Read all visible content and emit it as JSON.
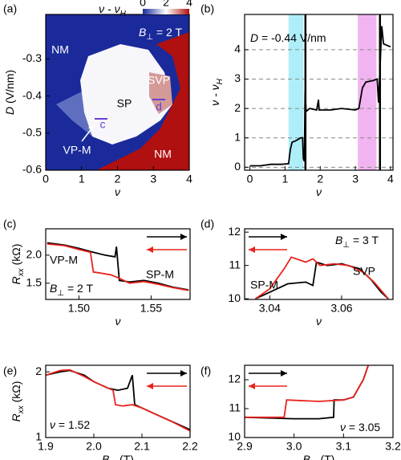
{
  "chart_data": [
    {
      "type": "heatmap",
      "label": "(a)",
      "xlim": [
        0,
        4
      ],
      "ylim": [
        -0.6,
        -0.18
      ],
      "xticks": [
        0,
        1,
        2,
        3,
        4
      ],
      "yticks": [
        -0.3,
        -0.4,
        -0.5,
        -0.6
      ],
      "xlabel": [
        {
          "text": "ν",
          "italic": true
        }
      ],
      "ylabel": [
        {
          "text": "D",
          "italic": true
        },
        {
          "text": " (V/nm)"
        }
      ],
      "colorbar": {
        "label": [
          {
            "text": "ν - ν",
            "italic": true
          },
          {
            "text": "H",
            "sub": true,
            "italic": true
          }
        ],
        "clim": [
          0,
          4
        ],
        "cticks": [
          0,
          2,
          4
        ],
        "colors": [
          "#1a2a9a",
          "#ffffff",
          "#b01010"
        ]
      },
      "annotations": [
        {
          "text": "NM",
          "color": "#ffffff"
        },
        {
          "text": [
            {
              "text": "B",
              "italic": true
            },
            {
              "text": "⊥",
              "sub": true
            },
            {
              "text": " = 2 T"
            }
          ],
          "color": "#ffffff"
        },
        {
          "text": "SVP",
          "color": "#ffffff"
        },
        {
          "text": "SP",
          "color": "#000000"
        },
        {
          "text": "d",
          "color": "#6a3fd0"
        },
        {
          "text": "c",
          "color": "#6a3fd0"
        },
        {
          "text": "VP-M",
          "color": "#ffffff"
        },
        {
          "text": "NM",
          "color": "#ffffff"
        }
      ]
    },
    {
      "type": "line",
      "label": "(b)",
      "xlim": [
        -0.15,
        4.07
      ],
      "ylim": [
        -0.1,
        5.2
      ],
      "xticks": [
        0,
        1,
        2,
        3,
        4
      ],
      "yticks": [
        0,
        1,
        2,
        3,
        4
      ],
      "grid": true,
      "xlabel": [
        {
          "text": "ν",
          "italic": true
        }
      ],
      "ylabel": [
        {
          "text": "ν - ν",
          "italic": true
        },
        {
          "text": "H",
          "sub": true,
          "italic": true
        }
      ],
      "bands": [
        {
          "range": [
            1.1,
            1.52
          ],
          "color": "#aeeef8"
        },
        {
          "range": [
            3.07,
            3.6
          ],
          "color": "#f2b4f0"
        }
      ],
      "vlines": [
        1.58,
        3.7
      ],
      "series": [
        {
          "color": "#000000",
          "x": [
            0,
            0.3,
            0.6,
            0.9,
            1.1,
            1.15,
            1.2,
            1.3,
            1.45,
            1.5,
            1.52,
            1.55,
            1.57,
            1.6,
            1.7,
            1.9,
            1.95,
            1.97,
            2.3,
            2.6,
            3.0,
            3.1,
            3.2,
            3.3,
            3.5,
            3.62,
            3.66,
            3.75,
            3.8,
            3.9,
            4.0
          ],
          "values": [
            0.05,
            0.05,
            0.1,
            0.1,
            0.12,
            0.6,
            0.85,
            0.9,
            1.0,
            1.0,
            0.3,
            0.2,
            2.6,
            1.9,
            2.0,
            1.95,
            2.3,
            1.95,
            1.95,
            2.0,
            1.95,
            2.0,
            2.7,
            2.9,
            2.95,
            3.0,
            2.2,
            4.8,
            4.2,
            4.15,
            4.1
          ]
        }
      ],
      "annotations": [
        {
          "text": [
            {
              "text": "D",
              "italic": true
            },
            {
              "text": " = -0.44 V/nm"
            }
          ],
          "color": "#000000"
        }
      ]
    },
    {
      "type": "line",
      "label": "(c)",
      "xlim": [
        1.477,
        1.577
      ],
      "ylim": [
        1.21,
        2.47
      ],
      "xticks": [
        {
          "value": 1.5,
          "label": "1.50"
        },
        1.55
      ],
      "yticks": [
        {
          "value": 1.5,
          "label": "1.5"
        },
        {
          "value": 2,
          "label": "2.0"
        }
      ],
      "xlabel": [
        {
          "text": "ν",
          "italic": true
        }
      ],
      "ylabel": [
        {
          "text": "R",
          "italic": true
        },
        {
          "text": "xx",
          "sub": true,
          "italic": true
        },
        {
          "text": " (kΩ)"
        }
      ],
      "series": [
        {
          "color": "#000000",
          "x": [
            1.478,
            1.49,
            1.5,
            1.51,
            1.518,
            1.525,
            1.526,
            1.528,
            1.535,
            1.545,
            1.555,
            1.565,
            1.576
          ],
          "values": [
            2.22,
            2.18,
            2.12,
            2.05,
            2.0,
            1.97,
            2.15,
            1.55,
            1.52,
            1.55,
            1.5,
            1.43,
            1.38
          ]
        },
        {
          "color": "#e8231d",
          "x": [
            1.478,
            1.49,
            1.5,
            1.508,
            1.51,
            1.515,
            1.522,
            1.527,
            1.535,
            1.545,
            1.555,
            1.565,
            1.576
          ],
          "values": [
            2.2,
            2.17,
            2.1,
            2.05,
            1.7,
            1.68,
            1.65,
            1.6,
            1.5,
            1.53,
            1.48,
            1.42,
            1.37
          ]
        }
      ],
      "annotations": [
        {
          "text": "VP-M",
          "color": "#000000"
        },
        {
          "text": "SP-M",
          "color": "#000000"
        },
        {
          "text": [
            {
              "text": "B",
              "italic": true
            },
            {
              "text": "⊥",
              "sub": true
            },
            {
              "text": " = 2 T"
            }
          ],
          "color": "#000000"
        }
      ]
    },
    {
      "type": "line",
      "label": "(d)",
      "xlim": [
        3.033,
        3.0743
      ],
      "ylim": [
        9.98,
        12.1
      ],
      "xticks": [
        3.04,
        3.06
      ],
      "yticks": [
        10,
        11,
        12
      ],
      "xlabel": [
        {
          "text": "ν",
          "italic": true
        }
      ],
      "series": [
        {
          "color": "#000000",
          "x": [
            3.036,
            3.04,
            3.045,
            3.05,
            3.052,
            3.053,
            3.056,
            3.06,
            3.065,
            3.068,
            3.071,
            3.073
          ],
          "values": [
            10.0,
            10.2,
            10.45,
            10.5,
            10.4,
            11.1,
            11.0,
            11.05,
            10.9,
            10.6,
            10.2,
            10.0
          ]
        },
        {
          "color": "#e8231d",
          "x": [
            3.036,
            3.04,
            3.044,
            3.046,
            3.05,
            3.052,
            3.054,
            3.058,
            3.062,
            3.066,
            3.069,
            3.073
          ],
          "values": [
            10.0,
            10.3,
            10.9,
            11.25,
            11.1,
            11.2,
            11.0,
            11.05,
            11.0,
            10.8,
            10.5,
            10.0
          ]
        }
      ],
      "annotations": [
        {
          "text": [
            {
              "text": "B",
              "italic": true
            },
            {
              "text": "⊥",
              "sub": true
            },
            {
              "text": " = 3 T"
            }
          ],
          "color": "#000000"
        },
        {
          "text": "SP-M",
          "color": "#000000"
        },
        {
          "text": "SVP",
          "color": "#000000"
        }
      ]
    },
    {
      "type": "line",
      "label": "(e)",
      "xlim": [
        1.9,
        2.2
      ],
      "ylim": [
        1.0,
        2.1
      ],
      "xticks": [
        1.9,
        {
          "value": 2,
          "label": "2.0"
        },
        2.1,
        2.2
      ],
      "yticks": [
        1,
        2
      ],
      "xlabel": [
        {
          "text": "B",
          "italic": true
        },
        {
          "text": "⊥",
          "sub": true
        },
        {
          "text": " (T)"
        }
      ],
      "ylabel": [
        {
          "text": "R",
          "italic": true
        },
        {
          "text": "xx",
          "sub": true,
          "italic": true
        },
        {
          "text": " (kΩ)"
        }
      ],
      "series": [
        {
          "color": "#000000",
          "x": [
            1.9,
            1.93,
            1.95,
            1.98,
            2.0,
            2.03,
            2.05,
            2.07,
            2.08,
            2.085,
            2.1,
            2.13,
            2.16,
            2.2
          ],
          "values": [
            1.95,
            2.0,
            2.02,
            1.95,
            1.85,
            1.75,
            1.72,
            1.75,
            1.95,
            1.5,
            1.45,
            1.35,
            1.25,
            1.12
          ]
        },
        {
          "color": "#e8231d",
          "x": [
            1.9,
            1.93,
            1.95,
            1.98,
            2.0,
            2.03,
            2.04,
            2.045,
            2.06,
            2.08,
            2.1,
            2.13,
            2.16,
            2.2
          ],
          "values": [
            1.95,
            2.02,
            2.03,
            1.93,
            1.85,
            1.75,
            1.72,
            1.5,
            1.48,
            1.5,
            1.45,
            1.35,
            1.25,
            1.1
          ]
        }
      ],
      "annotations": [
        {
          "text": [
            {
              "text": "ν",
              "italic": true
            },
            {
              "text": " = 1.52"
            }
          ],
          "color": "#000000"
        }
      ]
    },
    {
      "type": "line",
      "label": "(f)",
      "xlim": [
        2.9,
        3.2
      ],
      "ylim": [
        10,
        12.5
      ],
      "xticks": [
        2.9,
        {
          "value": 3,
          "label": "3.0"
        },
        3.1,
        3.2
      ],
      "yticks": [
        10,
        11,
        12
      ],
      "xlabel": [
        {
          "text": "B",
          "italic": true
        },
        {
          "text": "⊥",
          "sub": true
        },
        {
          "text": " (T)"
        }
      ],
      "series": [
        {
          "color": "#000000",
          "x": [
            2.9,
            3.0,
            3.05,
            3.08,
            3.081,
            3.1,
            3.12,
            3.13,
            3.14,
            3.15
          ],
          "values": [
            10.7,
            10.65,
            10.65,
            10.7,
            11.3,
            11.3,
            11.4,
            11.7,
            12.0,
            12.5
          ]
        },
        {
          "color": "#e8231d",
          "x": [
            2.9,
            2.98,
            2.985,
            3.05,
            3.1,
            3.12,
            3.13,
            3.14,
            3.15
          ],
          "values": [
            10.7,
            10.7,
            11.3,
            11.25,
            11.3,
            11.4,
            11.7,
            12.0,
            12.5
          ]
        }
      ],
      "annotations": [
        {
          "text": [
            {
              "text": "ν",
              "italic": true
            },
            {
              "text": " = 3.05"
            }
          ],
          "color": "#000000"
        }
      ]
    }
  ]
}
